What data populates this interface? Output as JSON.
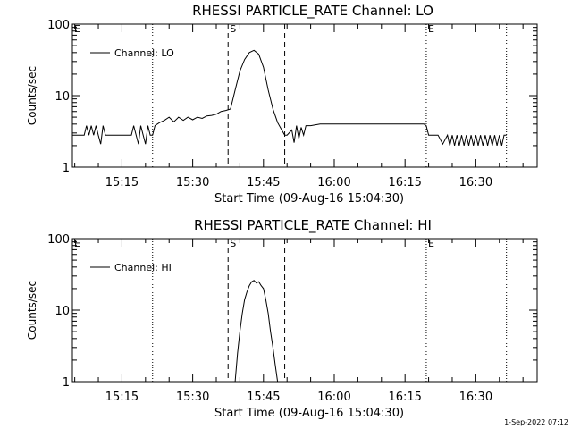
{
  "footer": {
    "timestamp": "1-Sep-2022 07:12"
  },
  "chart_data": [
    {
      "type": "line",
      "title": "RHESSI PARTICLE_RATE Channel: LO",
      "xlabel": "Start Time (09-Aug-16 15:04:30)",
      "ylabel": "Counts/sec",
      "y_scale": "log",
      "ylim": [
        1,
        100
      ],
      "y_ticks": [
        "1",
        "10",
        "100"
      ],
      "xlim": [
        "15:04:30",
        "16:43:00"
      ],
      "x_ticks": [
        "15:15",
        "15:30",
        "15:45",
        "16:00",
        "16:15",
        "16:30"
      ],
      "grid": false,
      "legend": "upper-left",
      "markers": [
        {
          "label": "E",
          "time": "15:04:30",
          "style": "dotted"
        },
        {
          "label": "",
          "time": "15:21:30",
          "style": "dotted"
        },
        {
          "label": "S",
          "time": "15:37:30",
          "style": "dashed"
        },
        {
          "label": "",
          "time": "15:49:30",
          "style": "dashed"
        },
        {
          "label": "E",
          "time": "16:19:30",
          "style": "dotted"
        },
        {
          "label": "",
          "time": "16:36:30",
          "style": "dotted"
        }
      ],
      "series": [
        {
          "name": "Channel: LO",
          "x": [
            "15:04:30",
            "15:06:00",
            "15:07:00",
            "15:07:30",
            "15:08:00",
            "15:08:30",
            "15:09:00",
            "15:09:30",
            "15:10:00",
            "15:10:30",
            "15:11:00",
            "15:11:30",
            "15:12:00",
            "15:13:00",
            "15:14:00",
            "15:15:00",
            "15:16:00",
            "15:17:00",
            "15:17:30",
            "15:18:00",
            "15:18:30",
            "15:19:00",
            "15:19:30",
            "15:20:00",
            "15:20:30",
            "15:21:00",
            "15:21:30",
            "15:22:00",
            "15:23:00",
            "15:24:00",
            "15:25:00",
            "15:26:00",
            "15:27:00",
            "15:28:00",
            "15:29:00",
            "15:30:00",
            "15:31:00",
            "15:32:00",
            "15:33:00",
            "15:34:00",
            "15:35:00",
            "15:36:00",
            "15:37:00",
            "15:38:00",
            "15:39:00",
            "15:40:00",
            "15:41:00",
            "15:42:00",
            "15:43:00",
            "15:44:00",
            "15:45:00",
            "15:46:00",
            "15:47:00",
            "15:48:00",
            "15:49:00",
            "15:49:30",
            "15:50:00",
            "15:51:00",
            "15:51:30",
            "15:52:00",
            "15:52:30",
            "15:53:00",
            "15:53:30",
            "15:54:00",
            "15:55:00",
            "15:57:00",
            "15:59:00",
            "16:00:00",
            "16:01:00",
            "16:03:00",
            "16:05:00",
            "16:07:00",
            "16:09:00",
            "16:11:00",
            "16:13:00",
            "16:15:00",
            "16:17:00",
            "16:19:00",
            "16:19:30",
            "16:20:00",
            "16:21:00",
            "16:21:30",
            "16:22:00",
            "16:23:00",
            "16:24:00",
            "16:24:30",
            "16:25:00",
            "16:25:30",
            "16:26:00",
            "16:26:30",
            "16:27:00",
            "16:27:30",
            "16:28:00",
            "16:28:30",
            "16:29:00",
            "16:29:30",
            "16:30:00",
            "16:30:30",
            "16:31:00",
            "16:31:30",
            "16:32:00",
            "16:32:30",
            "16:33:00",
            "16:33:30",
            "16:34:00",
            "16:34:30",
            "16:35:00",
            "16:35:30",
            "16:36:00",
            "16:36:30"
          ],
          "y": [
            2.8,
            2.8,
            2.8,
            3.8,
            2.8,
            3.8,
            2.8,
            3.8,
            2.8,
            2.1,
            3.8,
            2.8,
            2.8,
            2.8,
            2.8,
            2.8,
            2.8,
            2.8,
            3.8,
            2.8,
            2.1,
            3.8,
            2.8,
            2.1,
            3.8,
            2.8,
            2.8,
            3.8,
            4.2,
            4.5,
            5,
            4.3,
            5,
            4.5,
            5,
            4.6,
            5,
            4.8,
            5.2,
            5.3,
            5.5,
            6,
            6.2,
            6.5,
            12,
            22,
            32,
            40,
            43,
            38,
            25,
            12,
            6.5,
            4.2,
            3.2,
            2.8,
            2.8,
            3.3,
            2.2,
            3.8,
            2.5,
            3.6,
            2.8,
            3.8,
            3.8,
            4,
            4,
            4,
            4,
            4,
            4,
            4,
            4,
            4,
            4,
            4,
            4,
            4,
            3.8,
            2.8,
            2.8,
            2.8,
            2.8,
            2.1,
            2.8,
            2,
            2.8,
            2,
            2.8,
            2,
            2.8,
            2,
            2.8,
            2,
            2.8,
            2,
            2.8,
            2,
            2.8,
            2,
            2.8,
            2,
            2.8,
            2,
            2.8,
            2,
            2.8,
            2,
            2.8,
            2.8
          ]
        }
      ]
    },
    {
      "type": "line",
      "title": "RHESSI PARTICLE_RATE Channel: HI",
      "xlabel": "Start Time (09-Aug-16 15:04:30)",
      "ylabel": "Counts/sec",
      "y_scale": "log",
      "ylim": [
        1,
        100
      ],
      "y_ticks": [
        "1",
        "10",
        "100"
      ],
      "xlim": [
        "15:04:30",
        "16:43:00"
      ],
      "x_ticks": [
        "15:15",
        "15:30",
        "15:45",
        "16:00",
        "16:15",
        "16:30"
      ],
      "grid": false,
      "legend": "upper-left",
      "markers": [
        {
          "label": "E",
          "time": "15:04:30",
          "style": "dotted"
        },
        {
          "label": "",
          "time": "15:21:30",
          "style": "dotted"
        },
        {
          "label": "S",
          "time": "15:37:30",
          "style": "dashed"
        },
        {
          "label": "",
          "time": "15:49:30",
          "style": "dashed"
        },
        {
          "label": "E",
          "time": "16:19:30",
          "style": "dotted"
        },
        {
          "label": "",
          "time": "16:36:30",
          "style": "dotted"
        }
      ],
      "series": [
        {
          "name": "Channel: HI",
          "x": [
            "15:39:00",
            "15:39:30",
            "15:40:00",
            "15:40:30",
            "15:41:00",
            "15:41:30",
            "15:42:00",
            "15:42:30",
            "15:43:00",
            "15:43:30",
            "15:44:00",
            "15:44:30",
            "15:45:00",
            "15:45:30",
            "15:46:00",
            "15:46:30",
            "15:47:00",
            "15:47:30",
            "15:48:00"
          ],
          "y": [
            1,
            2.5,
            5,
            9,
            14,
            18,
            22,
            25,
            26,
            24,
            25,
            22,
            20,
            14,
            9,
            5,
            3,
            1.7,
            1
          ]
        }
      ]
    }
  ]
}
